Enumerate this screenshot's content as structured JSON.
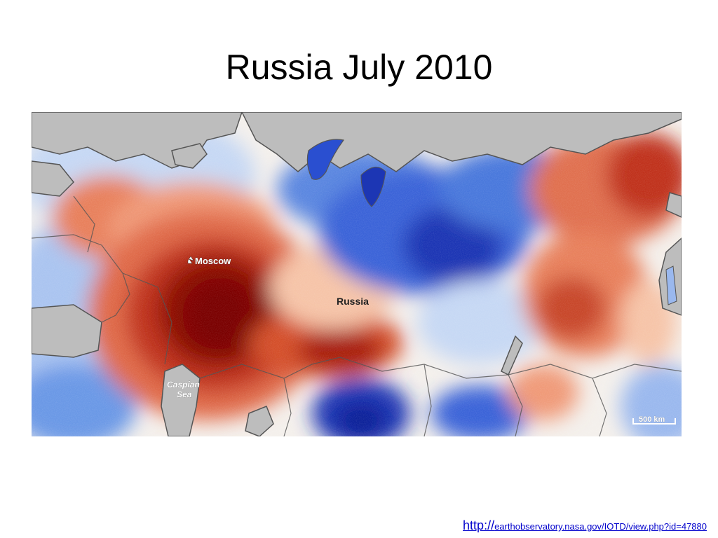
{
  "slide": {
    "title": "Russia July 2010"
  },
  "map": {
    "labels": {
      "moscow": "Moscow",
      "russia": "Russia",
      "caspian_line1": "Caspian",
      "caspian_line2": "Sea",
      "scale": "500 km"
    },
    "colors": {
      "land_neutral": "#f4f0ec",
      "water": "#bdbdbd",
      "hot_extreme": "#7a0000",
      "hot_strong": "#c0301c",
      "hot": "#e8805c",
      "warm": "#f6c4a8",
      "cool": "#c6d8f4",
      "cold": "#6a98e6",
      "cold_strong": "#2a4fd0",
      "cold_extreme": "#0c1e96",
      "border": "#555555"
    }
  },
  "footer": {
    "link_prefix": "http://",
    "link_rest": "earthobservatory.nasa.gov/IOTD/view.php?id=47880"
  }
}
